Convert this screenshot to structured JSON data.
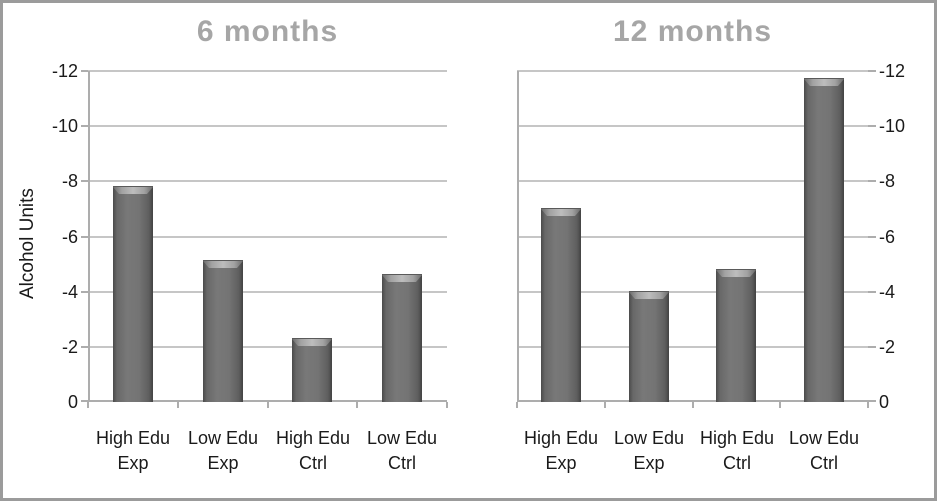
{
  "frame": {
    "background": "#ffffff",
    "border_color": "#9b9b9b"
  },
  "colors": {
    "title": "#a6a6a6",
    "axis_line": "#adadad",
    "gridline": "#c6c6c6",
    "tick_label": "#1a1a1a",
    "category_label": "#1a1a1a",
    "bar_body": "#6f6f6f"
  },
  "y_axis_title": "Alcohol Units",
  "chart_data": [
    {
      "type": "bar",
      "title": "6 months",
      "categories": [
        "High Edu Exp",
        "Low Edu Exp",
        "High Edu Ctrl",
        "Low Edu Ctrl"
      ],
      "categories_display": [
        [
          "High Edu",
          "Exp"
        ],
        [
          "Low Edu",
          "Exp"
        ],
        [
          "High Edu",
          "Ctrl"
        ],
        [
          "Low Edu",
          "Ctrl"
        ]
      ],
      "values": [
        -7.8,
        -5.1,
        -2.3,
        -4.6
      ],
      "xlabel": "",
      "ylabel": "Alcohol Units",
      "ylim": [
        0,
        -12
      ],
      "yticks": [
        0,
        -2,
        -4,
        -6,
        -8,
        -10,
        -12
      ],
      "y_axis_reversed": true,
      "y_labels_side": "left",
      "grid": true,
      "legend": false,
      "bar_color": "#6f6f6f"
    },
    {
      "type": "bar",
      "title": "12 months",
      "categories": [
        "High Edu Exp",
        "Low Edu Exp",
        "High Edu Ctrl",
        "Low Edu Ctrl"
      ],
      "categories_display": [
        [
          "High Edu",
          "Exp"
        ],
        [
          "Low Edu",
          "Exp"
        ],
        [
          "High Edu",
          "Ctrl"
        ],
        [
          "Low Edu",
          "Ctrl"
        ]
      ],
      "values": [
        -7.0,
        -4.0,
        -4.8,
        -11.7
      ],
      "xlabel": "",
      "ylabel": "",
      "ylim": [
        0,
        -12
      ],
      "yticks": [
        0,
        -2,
        -4,
        -6,
        -8,
        -10,
        -12
      ],
      "y_axis_reversed": true,
      "y_labels_side": "right",
      "grid": true,
      "legend": false,
      "bar_color": "#6f6f6f"
    }
  ]
}
